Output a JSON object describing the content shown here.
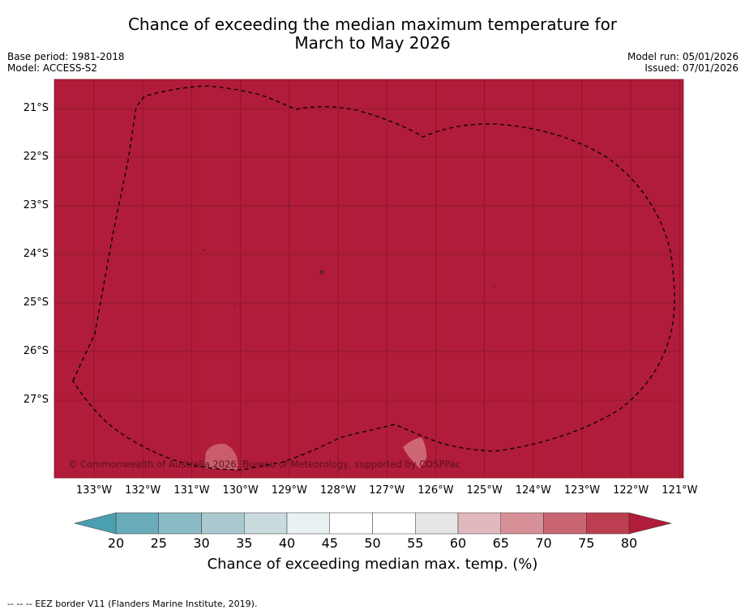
{
  "title": {
    "line1": "Chance of exceeding the median maximum temperature for",
    "line2": "March to May 2026"
  },
  "meta": {
    "base_period": "Base period: 1981-2018",
    "model": "Model: ACCESS-S2",
    "model_run": "Model run: 05/01/2026",
    "issued": "Issued: 07/01/2026"
  },
  "map": {
    "fill_color": "#b01c39",
    "grid_color": "#7a1424",
    "lat_labels": [
      "21°S",
      "22°S",
      "23°S",
      "24°S",
      "25°S",
      "26°S",
      "27°S"
    ],
    "lon_labels": [
      "133°W",
      "132°W",
      "131°W",
      "130°W",
      "129°W",
      "128°W",
      "127°W",
      "126°W",
      "125°W",
      "124°W",
      "123°W",
      "122°W",
      "121°W"
    ],
    "copyright": "© Commonwealth of Australia 2026, Bureau of Meteorology, supported by COSPPac"
  },
  "colorbar": {
    "ticks": [
      "20",
      "25",
      "30",
      "35",
      "40",
      "45",
      "50",
      "55",
      "60",
      "65",
      "70",
      "75",
      "80"
    ],
    "colors": [
      "#6aabba",
      "#8bbac5",
      "#a9c9cf",
      "#cadbde",
      "#eaf1f2",
      "#ffffff",
      "#ffffff",
      "#e6e6e6",
      "#e2b8bf",
      "#d89098",
      "#c96672",
      "#bd3e51"
    ],
    "low_extend_color": "#4a9fb0",
    "high_extend_color": "#b01c39",
    "label": "Chance of exceeding median max. temp. (%)"
  },
  "footer": "--  --  -- EEZ border V11 (Flanders Marine Institute, 2019)."
}
